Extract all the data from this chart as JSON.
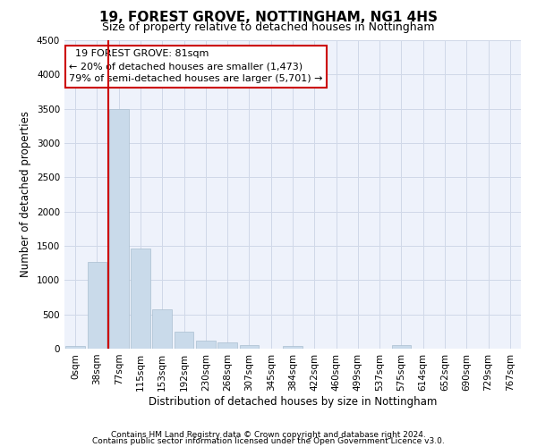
{
  "title": "19, FOREST GROVE, NOTTINGHAM, NG1 4HS",
  "subtitle": "Size of property relative to detached houses in Nottingham",
  "xlabel": "Distribution of detached houses by size in Nottingham",
  "ylabel": "Number of detached properties",
  "footnote1": "Contains HM Land Registry data © Crown copyright and database right 2024.",
  "footnote2": "Contains public sector information licensed under the Open Government Licence v3.0.",
  "bar_color": "#c9daea",
  "bar_edge_color": "#aabfd0",
  "grid_color": "#d0d8e8",
  "annotation_box_edge_color": "#cc0000",
  "vline_color": "#cc0000",
  "background_color": "#eef2fb",
  "categories": [
    "0sqm",
    "38sqm",
    "77sqm",
    "115sqm",
    "153sqm",
    "192sqm",
    "230sqm",
    "268sqm",
    "307sqm",
    "345sqm",
    "384sqm",
    "422sqm",
    "460sqm",
    "499sqm",
    "537sqm",
    "575sqm",
    "614sqm",
    "652sqm",
    "690sqm",
    "729sqm",
    "767sqm"
  ],
  "values": [
    40,
    1265,
    3490,
    1460,
    580,
    245,
    115,
    85,
    55,
    5,
    45,
    5,
    5,
    5,
    5,
    55,
    5,
    5,
    5,
    5,
    5
  ],
  "property_label": "19 FOREST GROVE: 81sqm",
  "pct_smaller": "20% of detached houses are smaller (1,473)",
  "pct_larger": "79% of semi-detached houses are larger (5,701)",
  "vline_bin_index": 2,
  "ylim": [
    0,
    4500
  ],
  "yticks": [
    0,
    500,
    1000,
    1500,
    2000,
    2500,
    3000,
    3500,
    4000,
    4500
  ],
  "title_fontsize": 11,
  "subtitle_fontsize": 9,
  "axis_label_fontsize": 8.5,
  "tick_fontsize": 7.5,
  "annotation_fontsize": 8,
  "footnote_fontsize": 6.5
}
